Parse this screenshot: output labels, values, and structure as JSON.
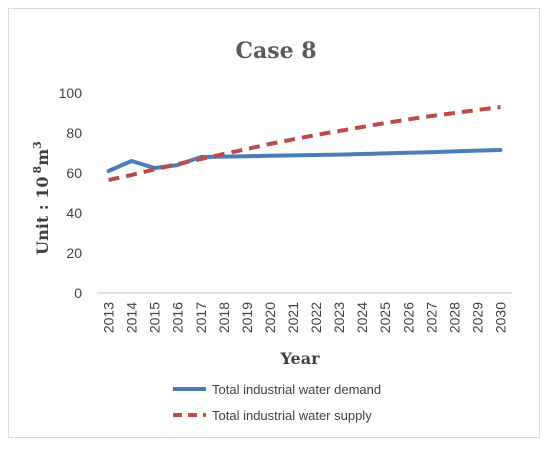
{
  "chart_data": {
    "type": "line",
    "title": "Case 8",
    "xlabel": "Year",
    "ylabel_prefix": "Unit : 10",
    "ylabel_exp1": "8",
    "ylabel_unit": "m",
    "ylabel_exp2": "3",
    "x": [
      "2013",
      "2014",
      "2015",
      "2016",
      "2017",
      "2018",
      "2019",
      "2020",
      "2021",
      "2022",
      "2023",
      "2024",
      "2025",
      "2026",
      "2027",
      "2028",
      "2029",
      "2030"
    ],
    "ylim": [
      0,
      100
    ],
    "yticks": [
      0,
      20,
      40,
      60,
      80,
      100
    ],
    "grid": false,
    "legend_position": "bottom",
    "series": [
      {
        "name": "Total industrial water demand",
        "color": "#4a7ebb",
        "style": "solid",
        "values": [
          61,
          66,
          62.5,
          64,
          68,
          68.2,
          68.4,
          68.6,
          68.8,
          69,
          69.2,
          69.5,
          69.8,
          70.1,
          70.4,
          70.8,
          71.2,
          71.5
        ]
      },
      {
        "name": "Total industrial water supply",
        "color": "#be4b48",
        "style": "dashed",
        "values": [
          56.5,
          59,
          61.8,
          64.5,
          67,
          69.5,
          72,
          74.5,
          76.8,
          79,
          81,
          83,
          85,
          86.8,
          88.5,
          90,
          91.5,
          93
        ]
      }
    ]
  }
}
